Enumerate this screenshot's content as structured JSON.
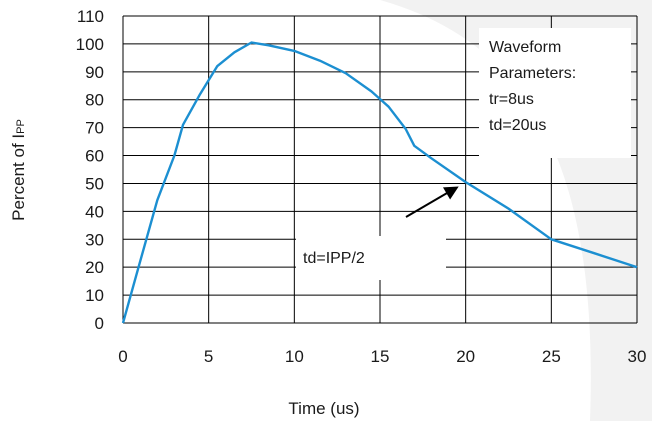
{
  "chart_data": {
    "type": "line",
    "xlabel": "Time (us)",
    "ylabel": {
      "main": "Percent of I",
      "sub": "PP"
    },
    "xlim": [
      0,
      30
    ],
    "ylim": [
      0,
      110
    ],
    "x_ticks": [
      0,
      5,
      10,
      15,
      20,
      25,
      30
    ],
    "y_ticks": [
      0,
      10,
      20,
      30,
      40,
      50,
      60,
      70,
      80,
      90,
      100,
      110
    ],
    "grid": true,
    "line_color": "#1c8fd1",
    "series": [
      {
        "x": [
          0,
          1.0,
          2.0,
          3.0,
          3.5,
          4.5,
          5.5,
          6.5,
          7.5,
          8.5,
          10,
          11.5,
          13,
          14.5,
          15.5,
          16.5,
          17.0,
          18.0,
          20.0,
          22.5,
          25.0,
          27.5,
          30.0
        ],
        "y": [
          0,
          22,
          44,
          60,
          71,
          82,
          92,
          97,
          100.5,
          99.5,
          97.5,
          94,
          89.5,
          83,
          77.5,
          69.5,
          63.5,
          59,
          50.5,
          41,
          30,
          25,
          20
        ]
      }
    ],
    "annotations": {
      "parameters_box": {
        "lines": [
          "Waveform",
          "Parameters:",
          "tr=8us",
          "td=20us"
        ]
      },
      "td_label": {
        "text": "td=IPP/2",
        "points_to": {
          "x": 20,
          "y": 50
        }
      }
    }
  }
}
